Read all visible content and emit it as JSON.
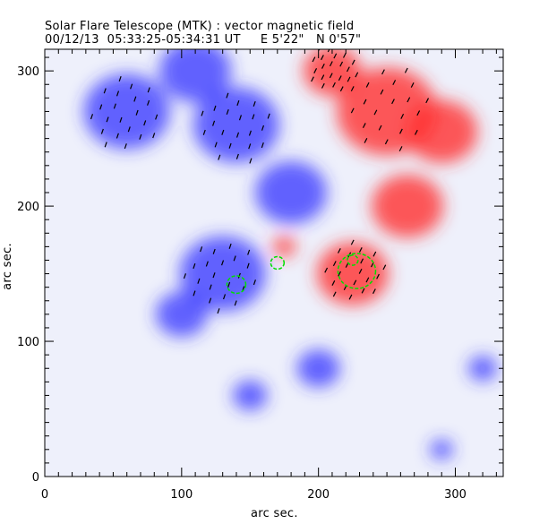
{
  "chart_data": {
    "type": "heatmap",
    "title": "Solar Flare Telescope (MTK) : vector magnetic field",
    "subtitle": "00/12/13  05:33:25-05:34:31 UT     E 5'22\"   N 0'57\"",
    "xlabel": "arc sec.",
    "ylabel": "arc sec.",
    "xlim": [
      0,
      335
    ],
    "ylim": [
      0,
      316
    ],
    "xticks": [
      "0",
      "100",
      "200",
      "300"
    ],
    "yticks": [
      "0",
      "100",
      "200",
      "300"
    ],
    "colors": {
      "positive": "#ff3030",
      "negative": "#3030ff",
      "contour": "#00e000",
      "vector": "#000000"
    },
    "positive_regions": [
      [
        225,
        150,
        25
      ],
      [
        250,
        270,
        35
      ],
      [
        210,
        300,
        20
      ],
      [
        290,
        255,
        25
      ],
      [
        265,
        200,
        25
      ],
      [
        175,
        170,
        8
      ]
    ],
    "negative_regions": [
      [
        130,
        150,
        30
      ],
      [
        60,
        270,
        30
      ],
      [
        140,
        260,
        30
      ],
      [
        180,
        210,
        25
      ],
      [
        100,
        120,
        18
      ],
      [
        200,
        80,
        15
      ],
      [
        150,
        60,
        12
      ],
      [
        320,
        80,
        10
      ],
      [
        290,
        20,
        8
      ],
      [
        110,
        300,
        25
      ]
    ],
    "contours": [
      [
        140,
        142,
        7
      ],
      [
        170,
        158,
        5
      ],
      [
        228,
        152,
        14
      ],
      [
        225,
        160,
        4
      ]
    ]
  }
}
